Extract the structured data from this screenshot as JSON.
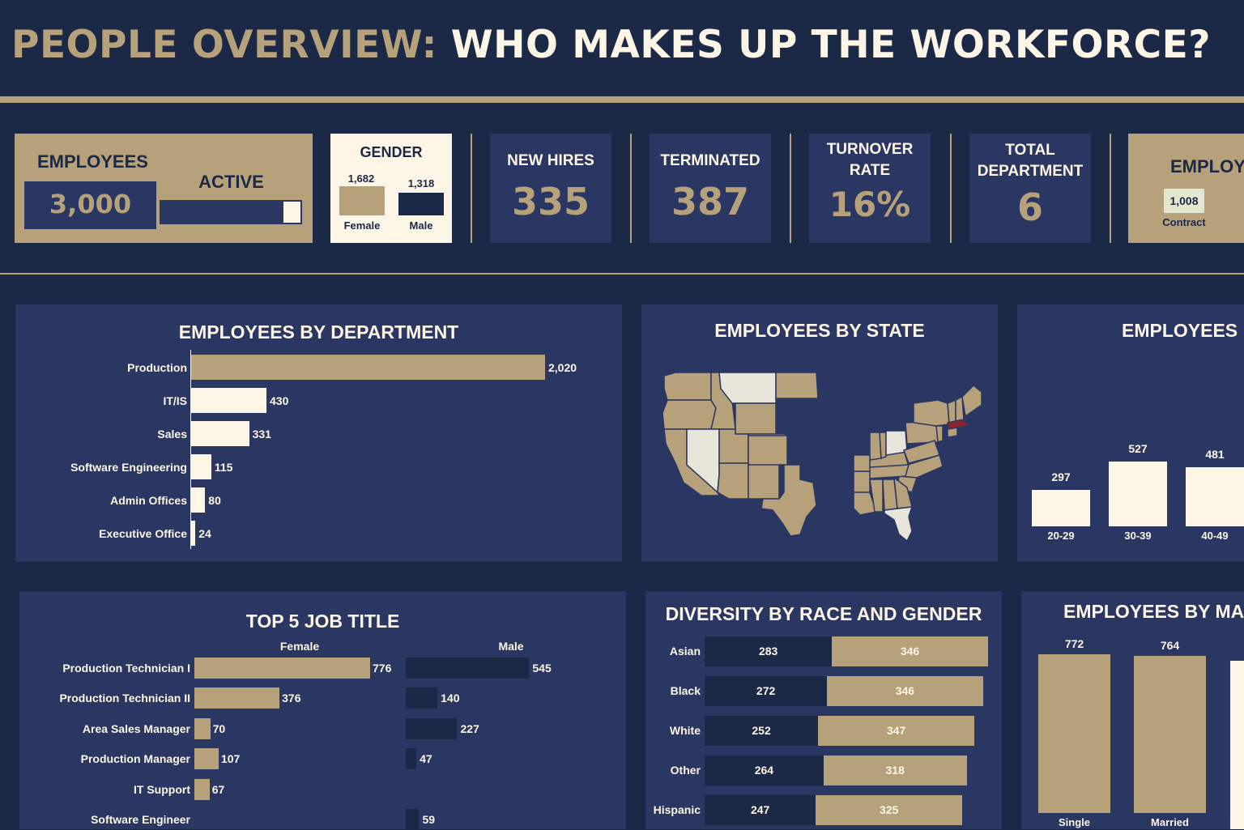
{
  "header": {
    "title_part1": "PEOPLE OVERVIEW:",
    "title_part2": "WHO MAKES UP THE WORKFORCE?"
  },
  "colors": {
    "navy": "#1b2846",
    "panel": "#2b3763",
    "gold": "#b6a17b",
    "cream": "#fdf5e6",
    "dark": "#1b2846",
    "highlight_red": "#8b2430"
  },
  "kpis": {
    "employees": {
      "label": "EMPLOYEES",
      "value": "3,000",
      "active_label": "ACTIVE",
      "active_fraction": 0.88
    },
    "gender": {
      "label": "GENDER",
      "female_value": "1,682",
      "female_label": "Female",
      "male_value": "1,318",
      "male_label": "Male"
    },
    "new_hires": {
      "label": "NEW HIRES",
      "value": "335"
    },
    "terminated": {
      "label": "TERMINATED",
      "value": "387"
    },
    "turnover": {
      "label_line1": "TURNOVER",
      "label_line2": "RATE",
      "value": "16%"
    },
    "total_department": {
      "label_line1": "TOTAL",
      "label_line2": "DEPARTMENT",
      "value": "6"
    },
    "employment_type": {
      "label": "EMPLOY",
      "contract_value": "1,008",
      "contract_label": "Contract"
    }
  },
  "chart_data": [
    {
      "id": "department",
      "type": "bar",
      "orientation": "horizontal",
      "title": "EMPLOYEES BY DEPARTMENT",
      "categories": [
        "Production",
        "IT/IS",
        "Sales",
        "Software Engineering",
        "Admin Offices",
        "Executive Office"
      ],
      "values": [
        2020,
        430,
        331,
        115,
        80,
        24
      ],
      "value_labels": [
        "2,020",
        "430",
        "331",
        "115",
        "80",
        "24"
      ]
    },
    {
      "id": "state",
      "type": "map",
      "title": "EMPLOYEES BY STATE",
      "highlight_state": "MA"
    },
    {
      "id": "age",
      "type": "bar",
      "title": "EMPLOYEES I",
      "categories": [
        "20-29",
        "30-39",
        "40-49"
      ],
      "values": [
        297,
        527,
        481
      ]
    },
    {
      "id": "job_title",
      "type": "bar",
      "orientation": "horizontal",
      "title": "TOP 5 JOB TITLE",
      "categories": [
        "Production Technician I",
        "Production Technician II",
        "Area Sales Manager",
        "Production Manager",
        "IT Support",
        "Software Engineer"
      ],
      "series": [
        {
          "name": "Female",
          "values": [
            776,
            376,
            70,
            107,
            67,
            null
          ]
        },
        {
          "name": "Male",
          "values": [
            545,
            140,
            227,
            47,
            null,
            59
          ]
        }
      ]
    },
    {
      "id": "race",
      "type": "bar",
      "orientation": "horizontal",
      "stacked": true,
      "title": "DIVERSITY BY RACE AND GENDER",
      "categories": [
        "Asian",
        "Black",
        "White",
        "Other",
        "Hispanic"
      ],
      "series": [
        {
          "values": [
            283,
            272,
            252,
            264,
            247
          ]
        },
        {
          "values": [
            346,
            346,
            347,
            318,
            325
          ]
        }
      ]
    },
    {
      "id": "marital",
      "type": "bar",
      "title": "EMPLOYEES BY MAI",
      "categories": [
        "Single",
        "Married"
      ],
      "values": [
        772,
        764
      ]
    }
  ]
}
